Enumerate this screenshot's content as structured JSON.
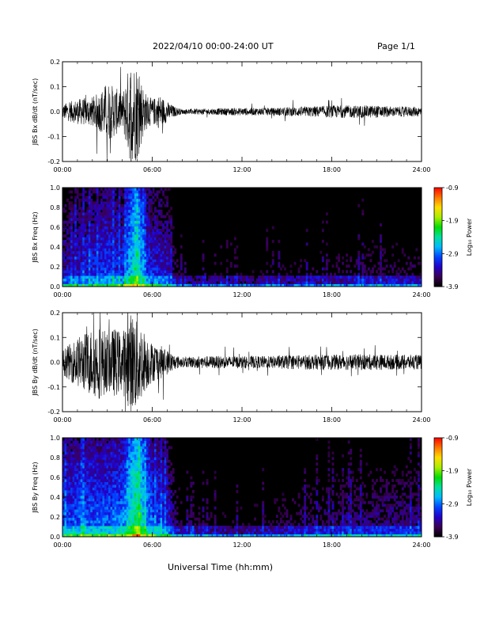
{
  "header": {
    "title": "2022/04/10  00:00-24:00 UT",
    "page": "Page 1/1"
  },
  "xaxis": {
    "title": "Universal Time (hh:mm)",
    "ticks": [
      "00:00",
      "06:00",
      "12:00",
      "18:00",
      "24:00"
    ],
    "range_hours": [
      0,
      24
    ]
  },
  "colorbar": {
    "label": "Log₁₀ Power",
    "ticks": [
      "-0.9",
      "-1.9",
      "-2.9",
      "-3.9"
    ],
    "range": [
      -3.9,
      -0.9
    ],
    "colormap": [
      "#000000",
      "#3a0055",
      "#2200cc",
      "#0044ff",
      "#00bbff",
      "#00e0a0",
      "#00dd00",
      "#aaee00",
      "#ffdd00",
      "#ff7700",
      "#ff0000"
    ]
  },
  "chart_data": [
    {
      "type": "line",
      "ylabel": "JBS Bx dB/dt (nT/sec)",
      "ylim": [
        -0.2,
        0.2
      ],
      "yticks": [
        "0.2",
        "0.1",
        "0.0",
        "-0.1",
        "-0.2"
      ],
      "xlim_hours": [
        0,
        24
      ],
      "series": [
        {
          "values": [
            [
              0,
              0.03
            ],
            [
              1,
              0.05
            ],
            [
              2,
              0.06
            ],
            [
              2.5,
              0.08
            ],
            [
              3,
              0.12
            ],
            [
              3.5,
              0.1
            ],
            [
              4,
              0.07
            ],
            [
              4.5,
              0.2
            ],
            [
              5,
              0.2
            ],
            [
              5.5,
              0.08
            ],
            [
              6,
              0.05
            ],
            [
              6.5,
              0.07
            ],
            [
              7,
              0.04
            ],
            [
              7.5,
              0.02
            ],
            [
              8,
              0.01
            ],
            [
              9,
              0.012
            ],
            [
              10,
              0.012
            ],
            [
              11,
              0.015
            ],
            [
              12,
              0.015
            ],
            [
              13,
              0.015
            ],
            [
              14,
              0.015
            ],
            [
              15,
              0.018
            ],
            [
              16,
              0.02
            ],
            [
              17,
              0.022
            ],
            [
              18,
              0.025
            ],
            [
              19,
              0.025
            ],
            [
              20,
              0.025
            ],
            [
              21,
              0.025
            ],
            [
              22,
              0.02
            ],
            [
              23,
              0.02
            ],
            [
              24,
              0.02
            ]
          ]
        }
      ],
      "color": "#000000"
    },
    {
      "type": "heatmap",
      "ylabel": "JBS Bx Freq (Hz)",
      "ylim": [
        0,
        1.0
      ],
      "yticks": [
        "1.0",
        "0.8",
        "0.6",
        "0.4",
        "0.2",
        "0.0"
      ],
      "xlim_hours": [
        0,
        24
      ],
      "zlim": [
        -3.9,
        -0.9
      ],
      "z_label": "Log₁₀ Power",
      "series": [
        {
          "values": [
            [
              0,
              -3.3
            ],
            [
              1,
              -3.2
            ],
            [
              2,
              -3.1
            ],
            [
              3,
              -3.0
            ],
            [
              4,
              -3.1
            ],
            [
              4.5,
              -2.6
            ],
            [
              5,
              -2.2
            ],
            [
              5.5,
              -3.0
            ],
            [
              6,
              -3.1
            ],
            [
              7,
              -3.2
            ],
            [
              7.5,
              -3.6
            ],
            [
              8,
              -3.85
            ],
            [
              10,
              -3.85
            ],
            [
              12,
              -3.85
            ],
            [
              14,
              -3.8
            ],
            [
              16,
              -3.75
            ],
            [
              18,
              -3.7
            ],
            [
              20,
              -3.65
            ],
            [
              22,
              -3.65
            ],
            [
              24,
              -3.65
            ]
          ]
        }
      ]
    },
    {
      "type": "line",
      "ylabel": "JBS By dB/dt (nT/sec)",
      "ylim": [
        -0.2,
        0.2
      ],
      "yticks": [
        "0.2",
        "0.1",
        "0.0",
        "-0.1",
        "-0.2"
      ],
      "xlim_hours": [
        0,
        24
      ],
      "series": [
        {
          "values": [
            [
              0,
              0.05
            ],
            [
              1,
              0.1
            ],
            [
              2,
              0.14
            ],
            [
              2.5,
              0.15
            ],
            [
              3,
              0.12
            ],
            [
              3.5,
              0.14
            ],
            [
              4,
              0.12
            ],
            [
              4.5,
              0.2
            ],
            [
              5,
              0.2
            ],
            [
              5.5,
              0.12
            ],
            [
              6,
              0.08
            ],
            [
              6.5,
              0.07
            ],
            [
              7,
              0.05
            ],
            [
              7.5,
              0.03
            ],
            [
              8,
              0.02
            ],
            [
              9,
              0.025
            ],
            [
              10,
              0.025
            ],
            [
              11,
              0.025
            ],
            [
              12,
              0.025
            ],
            [
              13,
              0.025
            ],
            [
              14,
              0.025
            ],
            [
              15,
              0.028
            ],
            [
              16,
              0.03
            ],
            [
              17,
              0.03
            ],
            [
              18,
              0.03
            ],
            [
              19,
              0.032
            ],
            [
              20,
              0.032
            ],
            [
              21,
              0.032
            ],
            [
              22,
              0.03
            ],
            [
              23,
              0.03
            ],
            [
              24,
              0.03
            ]
          ]
        }
      ],
      "color": "#000000"
    },
    {
      "type": "heatmap",
      "ylabel": "JBS By Freq (Hz)",
      "ylim": [
        0,
        1.0
      ],
      "yticks": [
        "1.0",
        "0.8",
        "0.6",
        "0.4",
        "0.2",
        "0.0"
      ],
      "xlim_hours": [
        0,
        24
      ],
      "zlim": [
        -3.9,
        -0.9
      ],
      "z_label": "Log₁₀ Power",
      "series": [
        {
          "values": [
            [
              0,
              -3.0
            ],
            [
              1,
              -2.9
            ],
            [
              2,
              -2.9
            ],
            [
              3,
              -2.9
            ],
            [
              4,
              -2.8
            ],
            [
              4.5,
              -2.4
            ],
            [
              5,
              -2.1
            ],
            [
              5.5,
              -2.6
            ],
            [
              6,
              -2.9
            ],
            [
              7,
              -3.1
            ],
            [
              7.5,
              -3.5
            ],
            [
              8,
              -3.7
            ],
            [
              10,
              -3.75
            ],
            [
              12,
              -3.75
            ],
            [
              14,
              -3.7
            ],
            [
              16,
              -3.6
            ],
            [
              18,
              -3.55
            ],
            [
              20,
              -3.5
            ],
            [
              22,
              -3.45
            ],
            [
              24,
              -3.45
            ]
          ]
        }
      ]
    }
  ]
}
